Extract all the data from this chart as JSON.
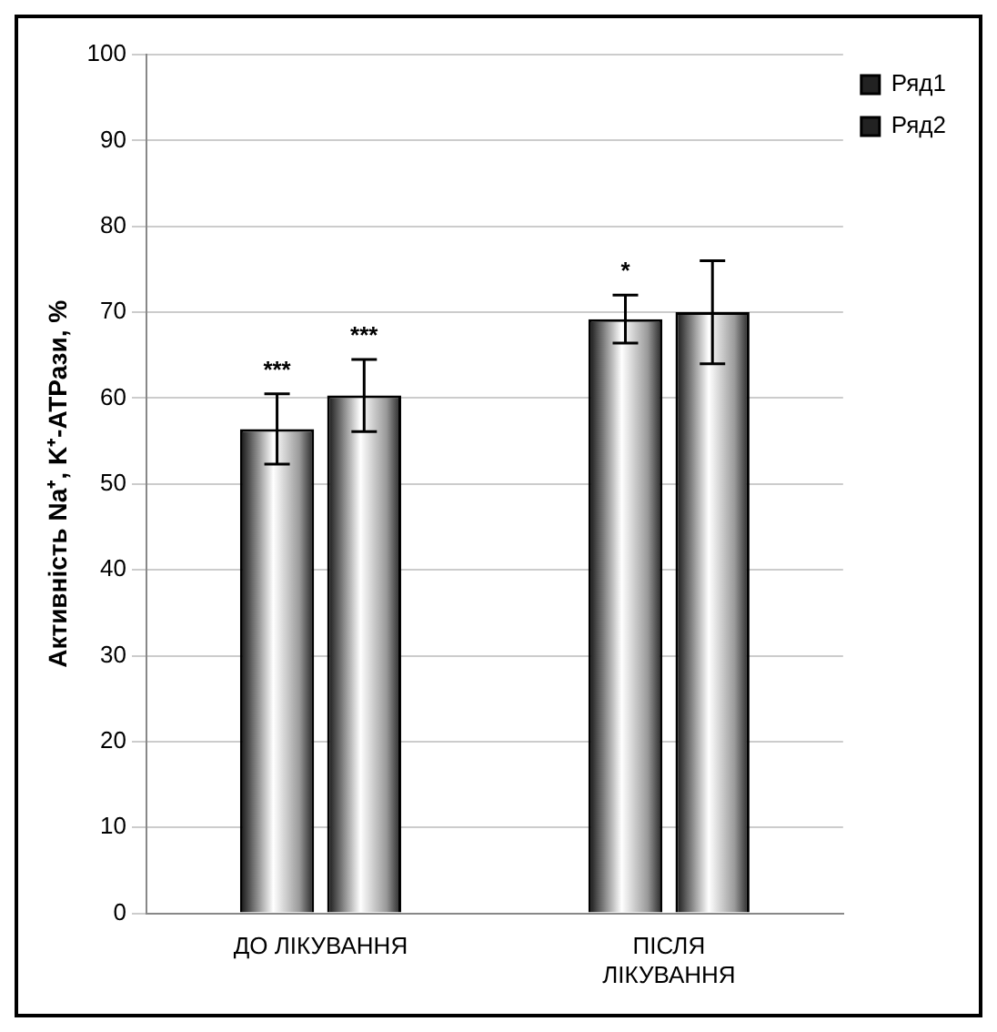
{
  "chart_data": {
    "type": "bar",
    "ylabel": "Активність Na⁺, K⁺-АТРази, %",
    "categories": [
      "ДО ЛІКУВАННЯ",
      "ПІСЛЯ ЛІКУВАННЯ"
    ],
    "series": [
      {
        "name": "Ряд1",
        "color": "#9a9a9a",
        "values": [
          56.4,
          69.2
        ],
        "errors": [
          4.1,
          2.8
        ]
      },
      {
        "name": "Ряд2",
        "color": "#9a9a9a",
        "values": [
          60.3,
          70
        ],
        "errors": [
          4.2,
          6
        ]
      }
    ],
    "ylim": [
      0,
      100
    ],
    "yticks": [
      0,
      10,
      20,
      30,
      40,
      50,
      60,
      70,
      80,
      90,
      100
    ],
    "grid": "y",
    "legend": "top right",
    "annotations": [
      "***",
      "***",
      "*"
    ]
  }
}
